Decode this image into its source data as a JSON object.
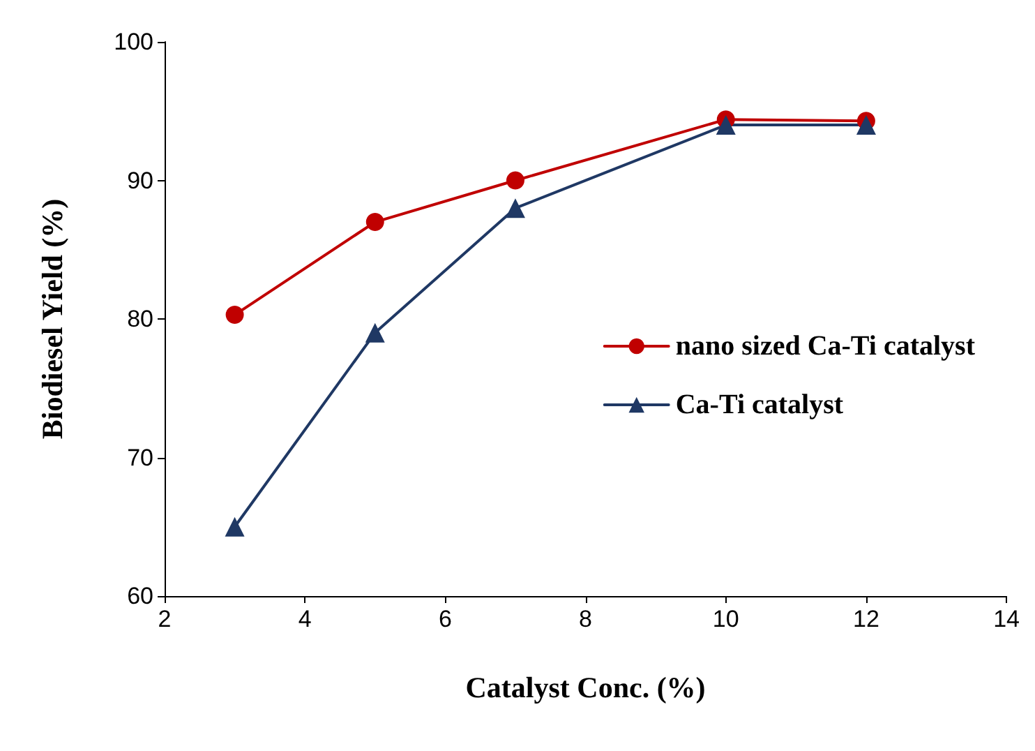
{
  "chart_data": {
    "type": "line",
    "xlabel": "Catalyst Conc. (%)",
    "ylabel": "Biodiesel Yield (%)",
    "xlim": [
      2,
      14
    ],
    "xticks": [
      2,
      4,
      6,
      8,
      10,
      12,
      14
    ],
    "ylim": [
      60,
      100
    ],
    "yticks": [
      60,
      70,
      80,
      90,
      100
    ],
    "grid": false,
    "legend": "right",
    "line_style": "solid",
    "series": [
      {
        "name": "nano sized Ca-Ti catalyst",
        "color": "#c00000",
        "marker": "circle",
        "x": [
          3,
          5,
          7,
          10,
          12
        ],
        "values": [
          80.3,
          87,
          90,
          94.4,
          94.3
        ]
      },
      {
        "name": "Ca-Ti catalyst",
        "color": "#1f3864",
        "marker": "triangle",
        "x": [
          3,
          5,
          7,
          10,
          12
        ],
        "values": [
          65,
          79,
          88,
          94,
          94
        ]
      }
    ]
  }
}
